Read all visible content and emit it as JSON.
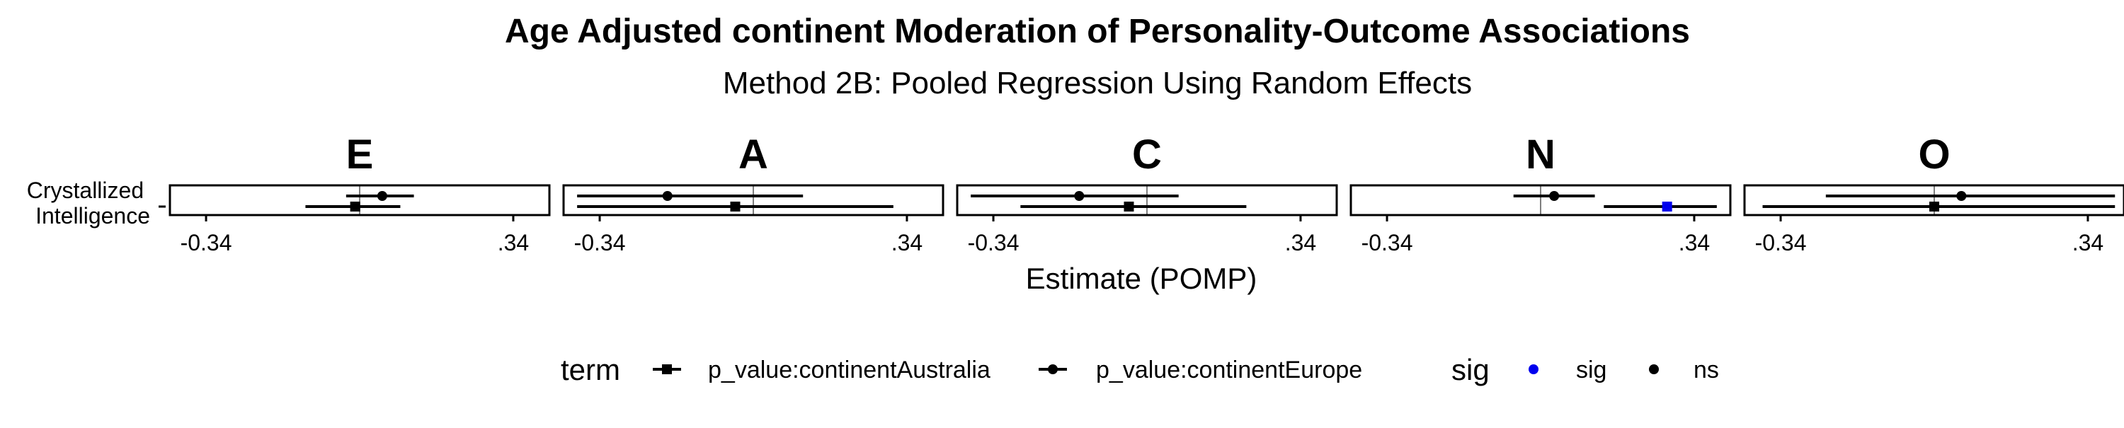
{
  "chart_data": {
    "type": "forest",
    "title": "Age Adjusted continent Moderation of Personality-Outcome Associations",
    "subtitle": "Method 2B: Pooled Regression Using Random Effects",
    "xlabel": "Estimate (POMP)",
    "ylabel": "",
    "y_categories": [
      "Crystallized Intelligence"
    ],
    "y_category_lines": [
      "Crystallized",
      "Intelligence"
    ],
    "xlim": [
      -0.42,
      0.42
    ],
    "x_ticks": [
      -0.34,
      0.34
    ],
    "x_tick_labels": [
      "-0.34",
      ".34"
    ],
    "reference_line": 0,
    "panels": [
      {
        "label": "E",
        "points": [
          {
            "term": "p_value:continentEurope",
            "estimate": 0.05,
            "lower": -0.03,
            "upper": 0.12,
            "sig": "ns"
          },
          {
            "term": "p_value:continentAustralia",
            "estimate": -0.01,
            "lower": -0.12,
            "upper": 0.09,
            "sig": "ns"
          }
        ]
      },
      {
        "label": "A",
        "points": [
          {
            "term": "p_value:continentEurope",
            "estimate": -0.19,
            "lower": -0.39,
            "upper": 0.11,
            "sig": "ns"
          },
          {
            "term": "p_value:continentAustralia",
            "estimate": -0.04,
            "lower": -0.39,
            "upper": 0.31,
            "sig": "ns"
          }
        ]
      },
      {
        "label": "C",
        "points": [
          {
            "term": "p_value:continentEurope",
            "estimate": -0.15,
            "lower": -0.39,
            "upper": 0.07,
            "sig": "ns"
          },
          {
            "term": "p_value:continentAustralia",
            "estimate": -0.04,
            "lower": -0.28,
            "upper": 0.22,
            "sig": "ns"
          }
        ]
      },
      {
        "label": "N",
        "points": [
          {
            "term": "p_value:continentEurope",
            "estimate": 0.03,
            "lower": -0.06,
            "upper": 0.12,
            "sig": "ns"
          },
          {
            "term": "p_value:continentAustralia",
            "estimate": 0.28,
            "lower": 0.14,
            "upper": 0.39,
            "sig": "sig"
          }
        ]
      },
      {
        "label": "O",
        "points": [
          {
            "term": "p_value:continentEurope",
            "estimate": 0.06,
            "lower": -0.24,
            "upper": 0.4,
            "sig": "ns"
          },
          {
            "term": "p_value:continentAustralia",
            "estimate": 0.0,
            "lower": -0.38,
            "upper": 0.4,
            "sig": "ns"
          }
        ]
      }
    ],
    "legend": {
      "placement": "bottom",
      "term_title": "term",
      "terms": [
        {
          "name": "p_value:continentAustralia",
          "shape": "square"
        },
        {
          "name": "p_value:continentEurope",
          "shape": "circle"
        }
      ],
      "sig_title": "sig",
      "sig_levels": [
        {
          "name": "sig",
          "color": "#0000ee"
        },
        {
          "name": "ns",
          "color": "#000000"
        }
      ]
    },
    "colors": {
      "sig": "#0000ee",
      "ns": "#000000",
      "reference": "#7f7f7f"
    }
  }
}
